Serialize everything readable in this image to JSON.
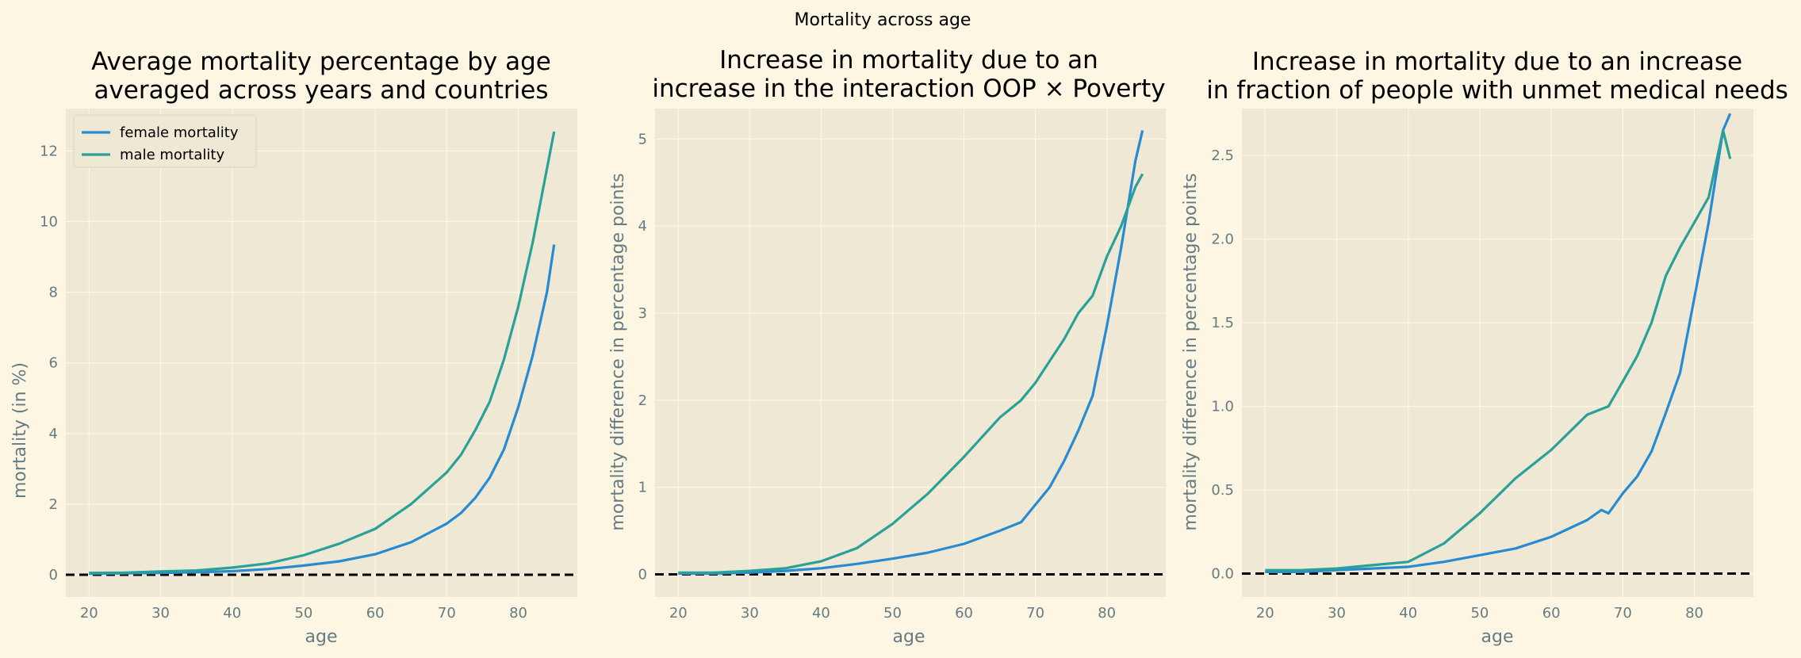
{
  "figure": {
    "suptitle": "Mortality across age"
  },
  "colors": {
    "background": "#fdf6e3",
    "axes_face": "#eee8d5",
    "grid": "#fdf6e3",
    "female": "#268bd2",
    "male": "#2aa198",
    "zero_line": "#000000",
    "label": "#657b83"
  },
  "chart_data": [
    {
      "type": "line",
      "title": [
        "Average mortality percentage by age",
        "averaged across years and countries"
      ],
      "xlabel": "age",
      "ylabel": "mortality (in %)",
      "xlim": [
        16.75,
        88.25
      ],
      "ylim": [
        -0.63,
        13.2
      ],
      "xticks": [
        20,
        30,
        40,
        50,
        60,
        70,
        80
      ],
      "yticks": [
        0,
        2,
        4,
        6,
        8,
        10,
        12
      ],
      "ytick_labels": [
        "0",
        "2",
        "4",
        "6",
        "8",
        "10",
        "12"
      ],
      "grid": true,
      "legend": "upper-left",
      "reference_line": {
        "y": 0,
        "style": "dashed"
      },
      "series": [
        {
          "name": "female mortality",
          "x": [
            20,
            25,
            30,
            35,
            40,
            45,
            50,
            55,
            60,
            65,
            70,
            72,
            74,
            76,
            78,
            80,
            82,
            84,
            85
          ],
          "y": [
            0.03,
            0.04,
            0.05,
            0.07,
            0.1,
            0.16,
            0.26,
            0.38,
            0.58,
            0.92,
            1.45,
            1.75,
            2.18,
            2.75,
            3.55,
            4.75,
            6.2,
            8.0,
            9.35
          ]
        },
        {
          "name": "male mortality",
          "x": [
            20,
            25,
            30,
            35,
            40,
            45,
            50,
            55,
            60,
            65,
            70,
            72,
            74,
            76,
            78,
            80,
            82,
            84,
            85
          ],
          "y": [
            0.05,
            0.06,
            0.09,
            0.12,
            0.2,
            0.32,
            0.55,
            0.88,
            1.3,
            2.0,
            2.9,
            3.4,
            4.1,
            4.9,
            6.1,
            7.6,
            9.4,
            11.5,
            12.55
          ]
        }
      ]
    },
    {
      "type": "line",
      "title": [
        "Increase in mortality due to an",
        "increase in the interaction OOP × Poverty"
      ],
      "xlabel": "age",
      "ylabel": "mortality difference in percentage points",
      "xlim": [
        16.75,
        88.25
      ],
      "ylim": [
        -0.26,
        5.35
      ],
      "xticks": [
        20,
        30,
        40,
        50,
        60,
        70,
        80
      ],
      "yticks": [
        0,
        1,
        2,
        3,
        4,
        5
      ],
      "ytick_labels": [
        "0",
        "1",
        "2",
        "3",
        "4",
        "5"
      ],
      "grid": true,
      "reference_line": {
        "y": 0,
        "style": "dashed"
      },
      "series": [
        {
          "name": "female mortality",
          "x": [
            20,
            25,
            30,
            35,
            40,
            45,
            50,
            55,
            60,
            65,
            68,
            70,
            72,
            74,
            76,
            78,
            80,
            82,
            84,
            85
          ],
          "y": [
            0.01,
            0.01,
            0.02,
            0.04,
            0.07,
            0.12,
            0.18,
            0.25,
            0.35,
            0.5,
            0.6,
            0.8,
            1.0,
            1.3,
            1.65,
            2.05,
            2.85,
            3.75,
            4.75,
            5.1
          ]
        },
        {
          "name": "male mortality",
          "x": [
            20,
            25,
            30,
            35,
            40,
            45,
            50,
            55,
            60,
            65,
            68,
            70,
            72,
            74,
            76,
            78,
            80,
            82,
            84,
            85
          ],
          "y": [
            0.02,
            0.02,
            0.04,
            0.07,
            0.15,
            0.3,
            0.58,
            0.93,
            1.35,
            1.8,
            2.0,
            2.2,
            2.45,
            2.7,
            3.0,
            3.2,
            3.65,
            4.0,
            4.45,
            4.6
          ]
        }
      ]
    },
    {
      "type": "line",
      "title": [
        "Increase in mortality due to an increase",
        "in fraction of people with unmet medical needs"
      ],
      "xlabel": "age",
      "ylabel": "mortality difference in percentage points",
      "xlim": [
        16.75,
        88.25
      ],
      "ylim": [
        -0.14,
        2.78
      ],
      "xticks": [
        20,
        30,
        40,
        50,
        60,
        70,
        80
      ],
      "yticks": [
        0,
        0.5,
        1.0,
        1.5,
        2.0,
        2.5
      ],
      "ytick_labels": [
        "0.0",
        "0.5",
        "1.0",
        "1.5",
        "2.0",
        "2.5"
      ],
      "grid": true,
      "reference_line": {
        "y": 0,
        "style": "dashed"
      },
      "series": [
        {
          "name": "female mortality",
          "x": [
            20,
            25,
            30,
            35,
            40,
            45,
            50,
            55,
            60,
            65,
            67,
            68,
            70,
            72,
            74,
            76,
            78,
            80,
            82,
            84,
            85
          ],
          "y": [
            0.01,
            0.01,
            0.02,
            0.03,
            0.04,
            0.07,
            0.11,
            0.15,
            0.22,
            0.32,
            0.38,
            0.36,
            0.48,
            0.58,
            0.73,
            0.96,
            1.2,
            1.65,
            2.1,
            2.65,
            2.75
          ]
        },
        {
          "name": "male mortality",
          "x": [
            20,
            25,
            30,
            35,
            40,
            45,
            50,
            55,
            60,
            65,
            68,
            70,
            72,
            74,
            76,
            78,
            80,
            82,
            84,
            85
          ],
          "y": [
            0.02,
            0.02,
            0.03,
            0.05,
            0.07,
            0.18,
            0.36,
            0.57,
            0.74,
            0.95,
            1.0,
            1.15,
            1.3,
            1.5,
            1.78,
            1.95,
            2.1,
            2.25,
            2.65,
            2.48
          ]
        }
      ]
    }
  ]
}
